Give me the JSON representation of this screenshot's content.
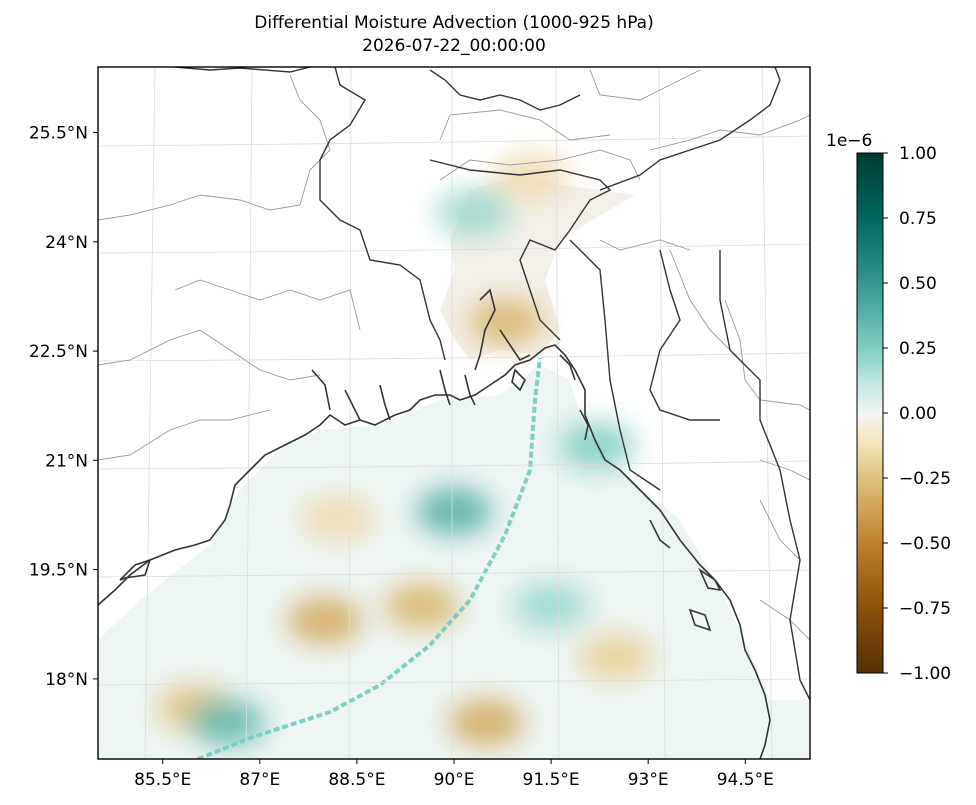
{
  "chart_data": {
    "type": "heatmap",
    "title": "Differential Moisture Advection (1000-925 hPa)",
    "subtitle": "2026-07-22_00:00:00",
    "projection": "lambert-conformal",
    "lon_range": [
      84.5,
      95.5
    ],
    "lat_range": [
      16.9,
      26.4
    ],
    "x_ticks": [
      {
        "value": 85.5,
        "label": "85.5°E"
      },
      {
        "value": 87,
        "label": "87°E"
      },
      {
        "value": 88.5,
        "label": "88.5°E"
      },
      {
        "value": 90,
        "label": "90°E"
      },
      {
        "value": 91.5,
        "label": "91.5°E"
      },
      {
        "value": 93,
        "label": "93°E"
      },
      {
        "value": 94.5,
        "label": "94.5°E"
      }
    ],
    "y_ticks": [
      {
        "value": 25.5,
        "label": "25.5°N"
      },
      {
        "value": 24,
        "label": "24°N"
      },
      {
        "value": 22.5,
        "label": "22.5°N"
      },
      {
        "value": 21,
        "label": "21°N"
      },
      {
        "value": 19.5,
        "label": "19.5°N"
      },
      {
        "value": 18,
        "label": "18°N"
      }
    ],
    "colorbar": {
      "colormap": "BrBG",
      "min": -1.0,
      "max": 1.0,
      "scale_label": "1e−6",
      "ticks": [
        {
          "value": 1.0,
          "label": "1.00"
        },
        {
          "value": 0.75,
          "label": "0.75"
        },
        {
          "value": 0.5,
          "label": "0.50"
        },
        {
          "value": 0.25,
          "label": "0.25"
        },
        {
          "value": 0.0,
          "label": "0.00"
        },
        {
          "value": -0.25,
          "label": "−0.25"
        },
        {
          "value": -0.5,
          "label": "−0.50"
        },
        {
          "value": -0.75,
          "label": "−0.75"
        },
        {
          "value": -1.0,
          "label": "−1.00"
        }
      ]
    },
    "grid": true,
    "field_features": [
      {
        "lon": 90.0,
        "lat": 20.3,
        "value": 0.4
      },
      {
        "lon": 88.0,
        "lat": 18.8,
        "value": -0.35
      },
      {
        "lon": 89.5,
        "lat": 19.0,
        "value": -0.3
      },
      {
        "lon": 91.5,
        "lat": 19.0,
        "value": 0.2
      },
      {
        "lon": 86.0,
        "lat": 17.6,
        "value": -0.25
      },
      {
        "lon": 90.5,
        "lat": 17.4,
        "value": -0.35
      },
      {
        "lon": 92.5,
        "lat": 18.3,
        "value": -0.2
      },
      {
        "lon": 86.5,
        "lat": 17.4,
        "value": 0.35
      },
      {
        "lon": 90.8,
        "lat": 22.9,
        "value": -0.3
      },
      {
        "lon": 90.3,
        "lat": 24.4,
        "value": 0.2
      },
      {
        "lon": 91.2,
        "lat": 24.9,
        "value": -0.15
      },
      {
        "lon": 88.2,
        "lat": 20.2,
        "value": -0.15
      },
      {
        "lon": 92.2,
        "lat": 21.2,
        "value": 0.25
      }
    ]
  },
  "colors": {
    "coast": "#333333",
    "border": "#999999",
    "grid": "#dddddd"
  }
}
